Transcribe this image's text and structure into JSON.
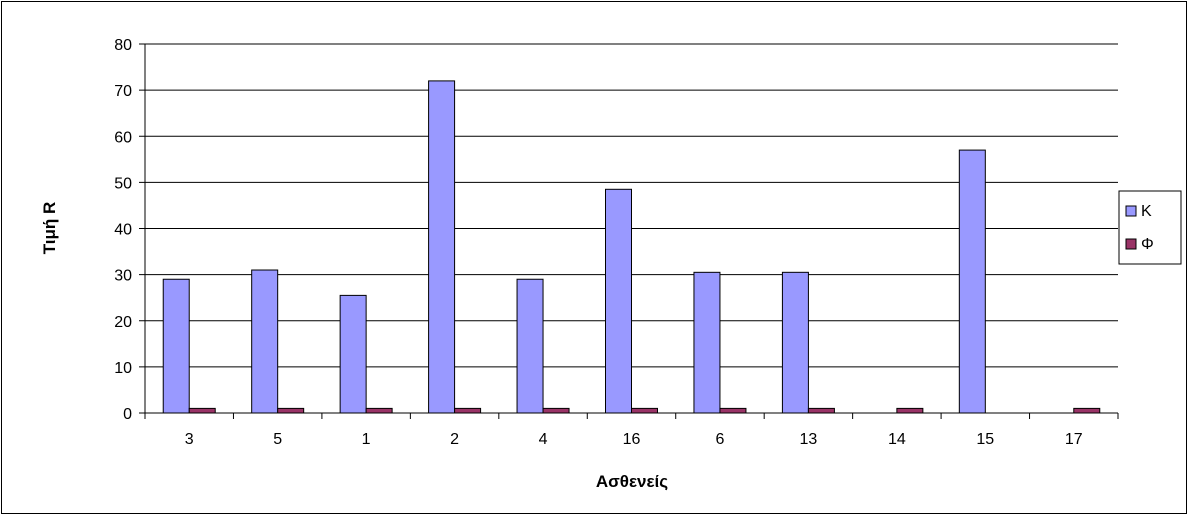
{
  "chart_data": {
    "type": "bar",
    "title": "",
    "xlabel": "Ασθενείς",
    "ylabel": "Τιμή R",
    "categories": [
      "3",
      "5",
      "1",
      "2",
      "4",
      "16",
      "6",
      "13",
      "14",
      "15",
      "17"
    ],
    "series": [
      {
        "name": "Κ",
        "color": "#9999FF",
        "values": [
          29,
          31,
          25.5,
          72,
          29,
          48.5,
          30.5,
          30.5,
          0,
          57,
          0
        ]
      },
      {
        "name": "Φ",
        "color": "#993366",
        "values": [
          1,
          1,
          1,
          1,
          1,
          1,
          1,
          1,
          1,
          0,
          1
        ]
      }
    ],
    "ylim": [
      0,
      80
    ],
    "yticks": [
      "0",
      "10",
      "20",
      "30",
      "40",
      "50",
      "60",
      "70",
      "80"
    ],
    "grid": true,
    "legend_position": "right"
  }
}
